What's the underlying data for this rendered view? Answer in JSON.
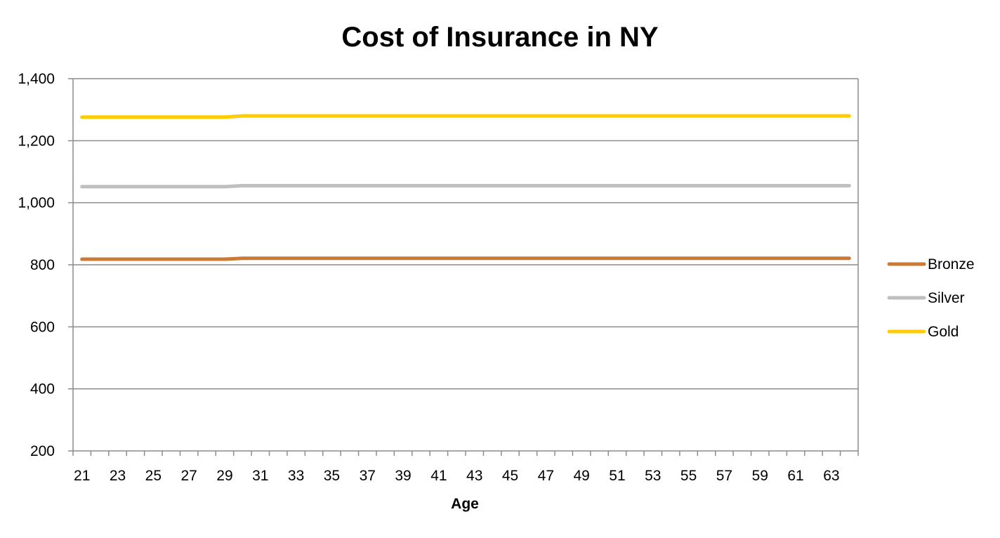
{
  "chart_data": {
    "type": "line",
    "title": "Cost of Insurance in NY",
    "xlabel": "Age",
    "ylabel": "",
    "x": [
      21,
      22,
      23,
      24,
      25,
      26,
      27,
      28,
      29,
      30,
      31,
      32,
      33,
      34,
      35,
      36,
      37,
      38,
      39,
      40,
      41,
      42,
      43,
      44,
      45,
      46,
      47,
      48,
      49,
      50,
      51,
      52,
      53,
      54,
      55,
      56,
      57,
      58,
      59,
      60,
      61,
      62,
      63,
      64
    ],
    "x_tick_labels": [
      "21",
      "23",
      "25",
      "27",
      "29",
      "31",
      "33",
      "35",
      "37",
      "39",
      "41",
      "43",
      "45",
      "47",
      "49",
      "51",
      "53",
      "55",
      "57",
      "59",
      "61",
      "63"
    ],
    "y_tick_labels": [
      "200",
      "400",
      "600",
      "800",
      "1,000",
      "1,200",
      "1,400"
    ],
    "ylim": [
      200,
      1400
    ],
    "grid": "horizontal",
    "legend_position": "right",
    "series": [
      {
        "name": "Bronze",
        "color": "#C97A34",
        "values": [
          818,
          818,
          818,
          818,
          818,
          818,
          818,
          818,
          818,
          821,
          821,
          821,
          821,
          821,
          821,
          821,
          821,
          821,
          821,
          821,
          821,
          821,
          821,
          821,
          821,
          821,
          821,
          821,
          821,
          821,
          821,
          821,
          821,
          821,
          821,
          821,
          821,
          821,
          821,
          821,
          821,
          821,
          821,
          821
        ]
      },
      {
        "name": "Silver",
        "color": "#BFBFBF",
        "values": [
          1052,
          1052,
          1052,
          1052,
          1052,
          1052,
          1052,
          1052,
          1052,
          1055,
          1055,
          1055,
          1055,
          1055,
          1055,
          1055,
          1055,
          1055,
          1055,
          1055,
          1055,
          1055,
          1055,
          1055,
          1055,
          1055,
          1055,
          1055,
          1055,
          1055,
          1055,
          1055,
          1055,
          1055,
          1055,
          1055,
          1055,
          1055,
          1055,
          1055,
          1055,
          1055,
          1055,
          1055
        ]
      },
      {
        "name": "Gold",
        "color": "#FFCC00",
        "values": [
          1276,
          1276,
          1276,
          1276,
          1276,
          1276,
          1276,
          1276,
          1276,
          1280,
          1280,
          1280,
          1280,
          1280,
          1280,
          1280,
          1280,
          1280,
          1280,
          1280,
          1280,
          1280,
          1280,
          1280,
          1280,
          1280,
          1280,
          1280,
          1280,
          1280,
          1280,
          1280,
          1280,
          1280,
          1280,
          1280,
          1280,
          1280,
          1280,
          1280,
          1280,
          1280,
          1280,
          1280
        ]
      }
    ]
  }
}
